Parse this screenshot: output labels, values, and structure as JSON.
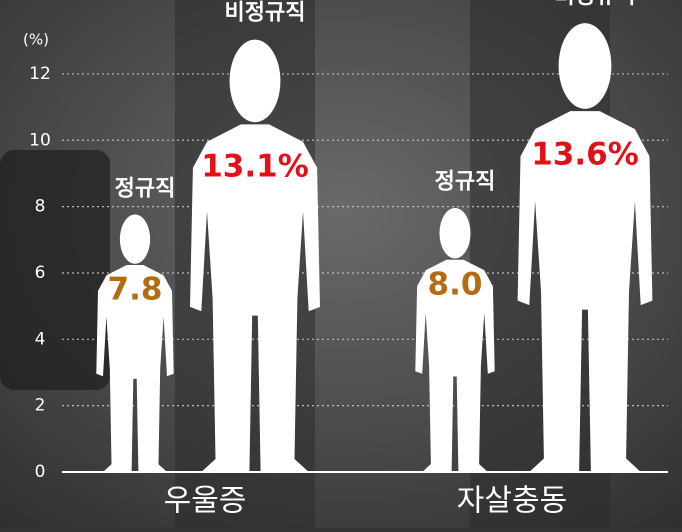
{
  "chart_data": {
    "type": "pictograph",
    "y_label": "(%)",
    "categories": [
      "우울증",
      "자살충동"
    ],
    "series": [
      {
        "name": "정규직",
        "color": "#b26c12",
        "values": [
          7.8,
          8.0
        ],
        "value_labels": [
          "7.8",
          "8.0"
        ]
      },
      {
        "name": "비정규직",
        "color": "#e3101a",
        "values": [
          13.1,
          13.6
        ],
        "value_labels": [
          "13.1%",
          "13.6%"
        ]
      }
    ],
    "ylim": [
      0,
      14
    ],
    "yticks": [
      0,
      2,
      4,
      6,
      8,
      10,
      12
    ],
    "grid": true
  }
}
